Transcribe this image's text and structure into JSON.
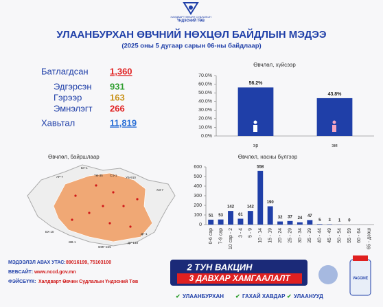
{
  "header": {
    "org_line1": "ХАЛДВАРТ ӨВЧИН СУДЛАЛЫН",
    "org_line2": "ҮНДЭСНИЙ ТӨВ",
    "title": "УЛААНБУРХАН ӨВЧНИЙ НӨХЦӨЛ БАЙДЛЫН МЭДЭЭ",
    "subtitle": "(2025 оны 5 дугаар сарын 06-ны байдлаар)"
  },
  "stats": [
    {
      "label": "Батлагдсан",
      "value": "1,360"
    },
    {
      "label": "Эдгэрсэн",
      "value": "931"
    },
    {
      "label": "Гэрээр",
      "value": "163"
    },
    {
      "label": "Эмнэлэгт",
      "value": "266"
    },
    {
      "label": "Хавьтал",
      "value": "11,819"
    }
  ],
  "map": {
    "title": "Өвчлөл, байршлаар",
    "labels": [
      "БУ-1",
      "АР-7",
      "ТӨ-35",
      "СЭ-1",
      "УБ-910",
      "ХЭ-7",
      "БХ-10",
      "ӨВ-1",
      "ӨМГ-225",
      "ДУ-148",
      "ДГ-1"
    ]
  },
  "chart_data": [
    {
      "type": "bar",
      "title": "Өвчлөл, хүйсээр",
      "categories": [
        "эр",
        "эм"
      ],
      "values": [
        56.2,
        43.8
      ],
      "value_labels": [
        "56.2%",
        "43.8%"
      ],
      "color": "#1f3fa8",
      "ylim": [
        0,
        70
      ],
      "yticks": [
        {
          "value": 0,
          "label": "0.0%"
        },
        {
          "value": 10,
          "label": "10.0%"
        },
        {
          "value": 20,
          "label": "20.0%"
        },
        {
          "value": 30,
          "label": "30.0%"
        },
        {
          "value": 40,
          "label": "40.0%"
        },
        {
          "value": 50,
          "label": "50.0%"
        },
        {
          "value": 60,
          "label": "60.0%"
        },
        {
          "value": 70,
          "label": "70.0%"
        }
      ]
    },
    {
      "type": "bar",
      "title": "Өвчлөл, насны бүлгээр",
      "categories": [
        "0-6 сар",
        "7-9 сар",
        "10 сар - 2",
        "3 - 4",
        "5 - 9",
        "10 - 14",
        "15 - 19",
        "20 - 24",
        "25 - 29",
        "30 - 34",
        "35 - 39",
        "40 - 44",
        "45 - 49",
        "50 - 54",
        "55 - 59",
        "60 - 64",
        "65 - дээш"
      ],
      "values": [
        51,
        53,
        142,
        61,
        142,
        558,
        190,
        32,
        37,
        24,
        47,
        5,
        3,
        1,
        0,
        null,
        null
      ],
      "color": "#1f3fa8",
      "ylim": [
        0,
        600
      ],
      "yticks": [
        0,
        100,
        200,
        300,
        400,
        500,
        600
      ]
    }
  ],
  "footer": {
    "phone_label": "МЭДЭЭЛЭЛ АВАХ УТАС:",
    "phone": "89016199, 75103100",
    "web_label": "ВЕБСАЙТ:",
    "web": "www.nccd.gov.mn",
    "fb_label": "ФЭЙСБҮҮК:",
    "fb": "Халдварт Өвчин Судлалын Үндэсний Төв"
  },
  "banner": {
    "line1": "2 ТУН ВАКЦИН",
    "line2": "3 ДАВХАР ХАМГААЛАЛТ",
    "items": [
      "УЛААНБУРХАН",
      "ГАХАЙ ХАВДАР",
      "УЛААНУУД"
    ],
    "bottle": "VACCINE"
  }
}
